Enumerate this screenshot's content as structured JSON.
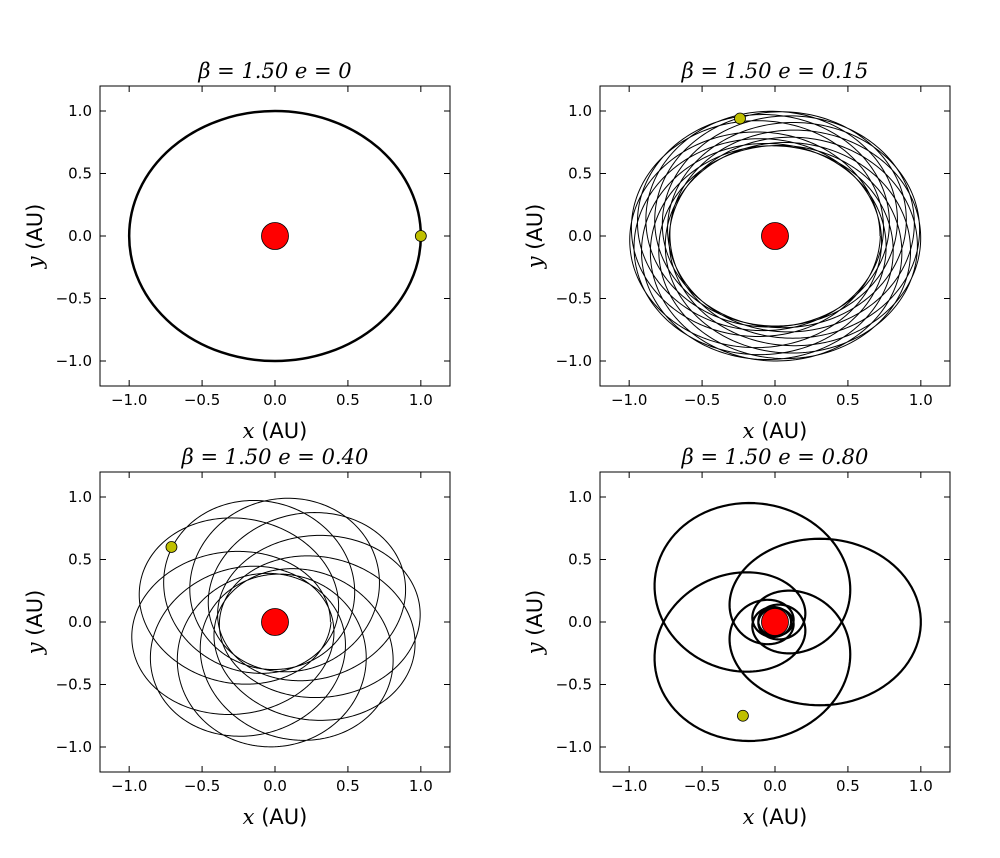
{
  "chart_data": [
    {
      "type": "scatter",
      "title": "β = 1.50   e = 0",
      "beta": 1.5,
      "e": 0,
      "xlabel": {
        "var": "x",
        "unit": "(AU)"
      },
      "ylabel": {
        "var": "y",
        "unit": "(AU)"
      },
      "xlim": [
        -1.2,
        1.2
      ],
      "ylim": [
        -1.2,
        1.2
      ],
      "xticks": [
        "−1.0",
        "−0.5",
        "0.0",
        "0.5",
        "1.0"
      ],
      "yticks": [
        "−1.0",
        "−0.5",
        "0.0",
        "0.5",
        "1.0"
      ],
      "orbit": {
        "shape": "circle",
        "radius_au": 1.0,
        "color": "#000000"
      },
      "star": {
        "x": 0.0,
        "y": 0.0,
        "color": "#ff0000"
      },
      "planet": {
        "x": 1.0,
        "y": 0.0,
        "color": "#bfbf00"
      }
    },
    {
      "type": "scatter",
      "title": "β = 1.50   e = 0.15",
      "beta": 1.5,
      "e": 0.15,
      "xlabel": {
        "var": "x",
        "unit": "(AU)"
      },
      "ylabel": {
        "var": "y",
        "unit": "(AU)"
      },
      "xlim": [
        -1.2,
        1.2
      ],
      "ylim": [
        -1.2,
        1.2
      ],
      "xticks": [
        "−1.0",
        "−0.5",
        "0.0",
        "0.5",
        "1.0"
      ],
      "yticks": [
        "−1.0",
        "−0.5",
        "0.0",
        "0.5",
        "1.0"
      ],
      "orbit": {
        "shape": "precessing-ellipse",
        "perihelion_au": 0.72,
        "aphelion_au": 1.0,
        "loops": 14,
        "color": "#000000"
      },
      "star": {
        "x": 0.0,
        "y": 0.0,
        "color": "#ff0000"
      },
      "planet": {
        "x": -0.24,
        "y": 0.94,
        "color": "#bfbf00"
      }
    },
    {
      "type": "scatter",
      "title": "β = 1.50   e = 0.40",
      "beta": 1.5,
      "e": 0.4,
      "xlabel": {
        "var": "x",
        "unit": "(AU)"
      },
      "ylabel": {
        "var": "y",
        "unit": "(AU)"
      },
      "xlim": [
        -1.2,
        1.2
      ],
      "ylim": [
        -1.2,
        1.2
      ],
      "xticks": [
        "−1.0",
        "−0.5",
        "0.0",
        "0.5",
        "1.0"
      ],
      "yticks": [
        "−1.0",
        "−0.5",
        "0.0",
        "0.5",
        "1.0"
      ],
      "orbit": {
        "shape": "precessing-ellipse",
        "perihelion_au": 0.38,
        "aphelion_au": 1.0,
        "loops": 11,
        "color": "#000000"
      },
      "star": {
        "x": 0.0,
        "y": 0.0,
        "color": "#ff0000"
      },
      "planet": {
        "x": -0.71,
        "y": 0.6,
        "color": "#bfbf00"
      }
    },
    {
      "type": "scatter",
      "title": "β = 1.50   e = 0.80",
      "beta": 1.5,
      "e": 0.8,
      "xlabel": {
        "var": "x",
        "unit": "(AU)"
      },
      "ylabel": {
        "var": "y",
        "unit": "(AU)"
      },
      "xlim": [
        -1.2,
        1.2
      ],
      "ylim": [
        -1.2,
        1.2
      ],
      "xticks": [
        "−1.0",
        "−0.5",
        "0.0",
        "0.5",
        "1.0"
      ],
      "yticks": [
        "−1.0",
        "−0.5",
        "0.0",
        "0.5",
        "1.0"
      ],
      "orbit": {
        "shape": "rosette",
        "perihelion_au": 0.11,
        "aphelion_au": 1.0,
        "petals": 8,
        "color": "#000000"
      },
      "star": {
        "x": 0.0,
        "y": 0.0,
        "color": "#ff0000"
      },
      "planet": {
        "x": -0.22,
        "y": -0.75,
        "color": "#bfbf00"
      }
    }
  ]
}
